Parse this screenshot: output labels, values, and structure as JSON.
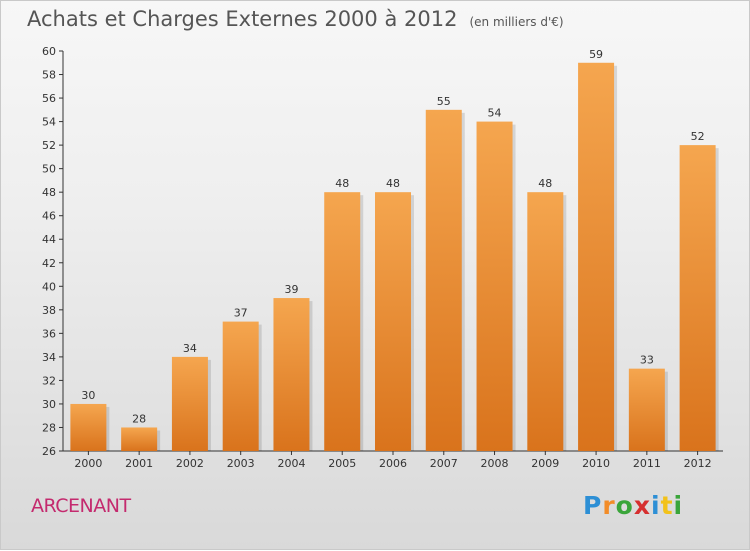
{
  "header": {
    "title": "Achats et Charges Externes 2000 à 2012",
    "subtitle": "(en milliers d'€)"
  },
  "footer": {
    "place": "ARCENANT",
    "brand": "Proxiti"
  },
  "colors": {
    "bar_top": "#f5a64f",
    "bar_bottom": "#d9731c",
    "title": "#555555",
    "place": "#c42a6e"
  },
  "chart_data": {
    "type": "bar",
    "title": "Achats et Charges Externes 2000 à 2012",
    "subtitle": "(en milliers d'€)",
    "categories": [
      "2000",
      "2001",
      "2002",
      "2003",
      "2004",
      "2005",
      "2006",
      "2007",
      "2008",
      "2009",
      "2010",
      "2011",
      "2012"
    ],
    "values": [
      30,
      28,
      34,
      37,
      39,
      48,
      48,
      55,
      54,
      48,
      59,
      33,
      52
    ],
    "data_labels": [
      "30",
      "28",
      "34",
      "37",
      "39",
      "48",
      "48",
      "55",
      "54",
      "48",
      "59",
      "33",
      "52"
    ],
    "ylim": [
      26,
      60
    ],
    "yticks": [
      "26",
      "28",
      "30",
      "32",
      "34",
      "36",
      "38",
      "40",
      "42",
      "44",
      "46",
      "48",
      "50",
      "52",
      "54",
      "56",
      "58",
      "60"
    ],
    "grid": false,
    "legend": "none"
  }
}
